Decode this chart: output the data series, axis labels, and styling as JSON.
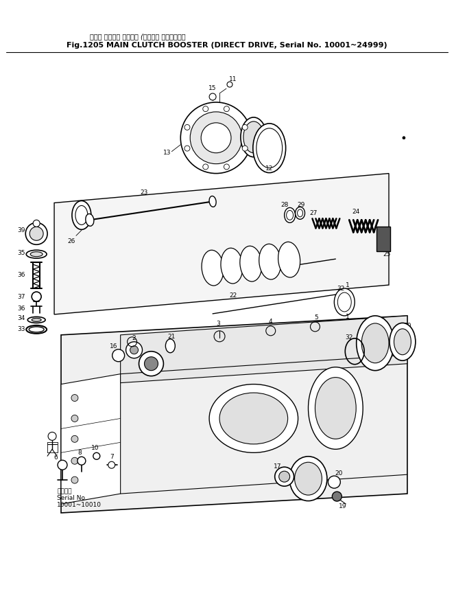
{
  "title_jp": "メイン クラッチ ブースタ (クラッチ 式、適用号視",
  "title_en": "Fig.1205 MAIN CLUTCH BOOSTER (DIRECT DRIVE, Serial No. 10001~24999)",
  "serial_jp": "適用号視",
  "serial_en": "Serial No.",
  "serial_range": "10001~10010",
  "bg": "#ffffff",
  "ink": "#000000",
  "fig_width": 6.62,
  "fig_height": 8.71
}
